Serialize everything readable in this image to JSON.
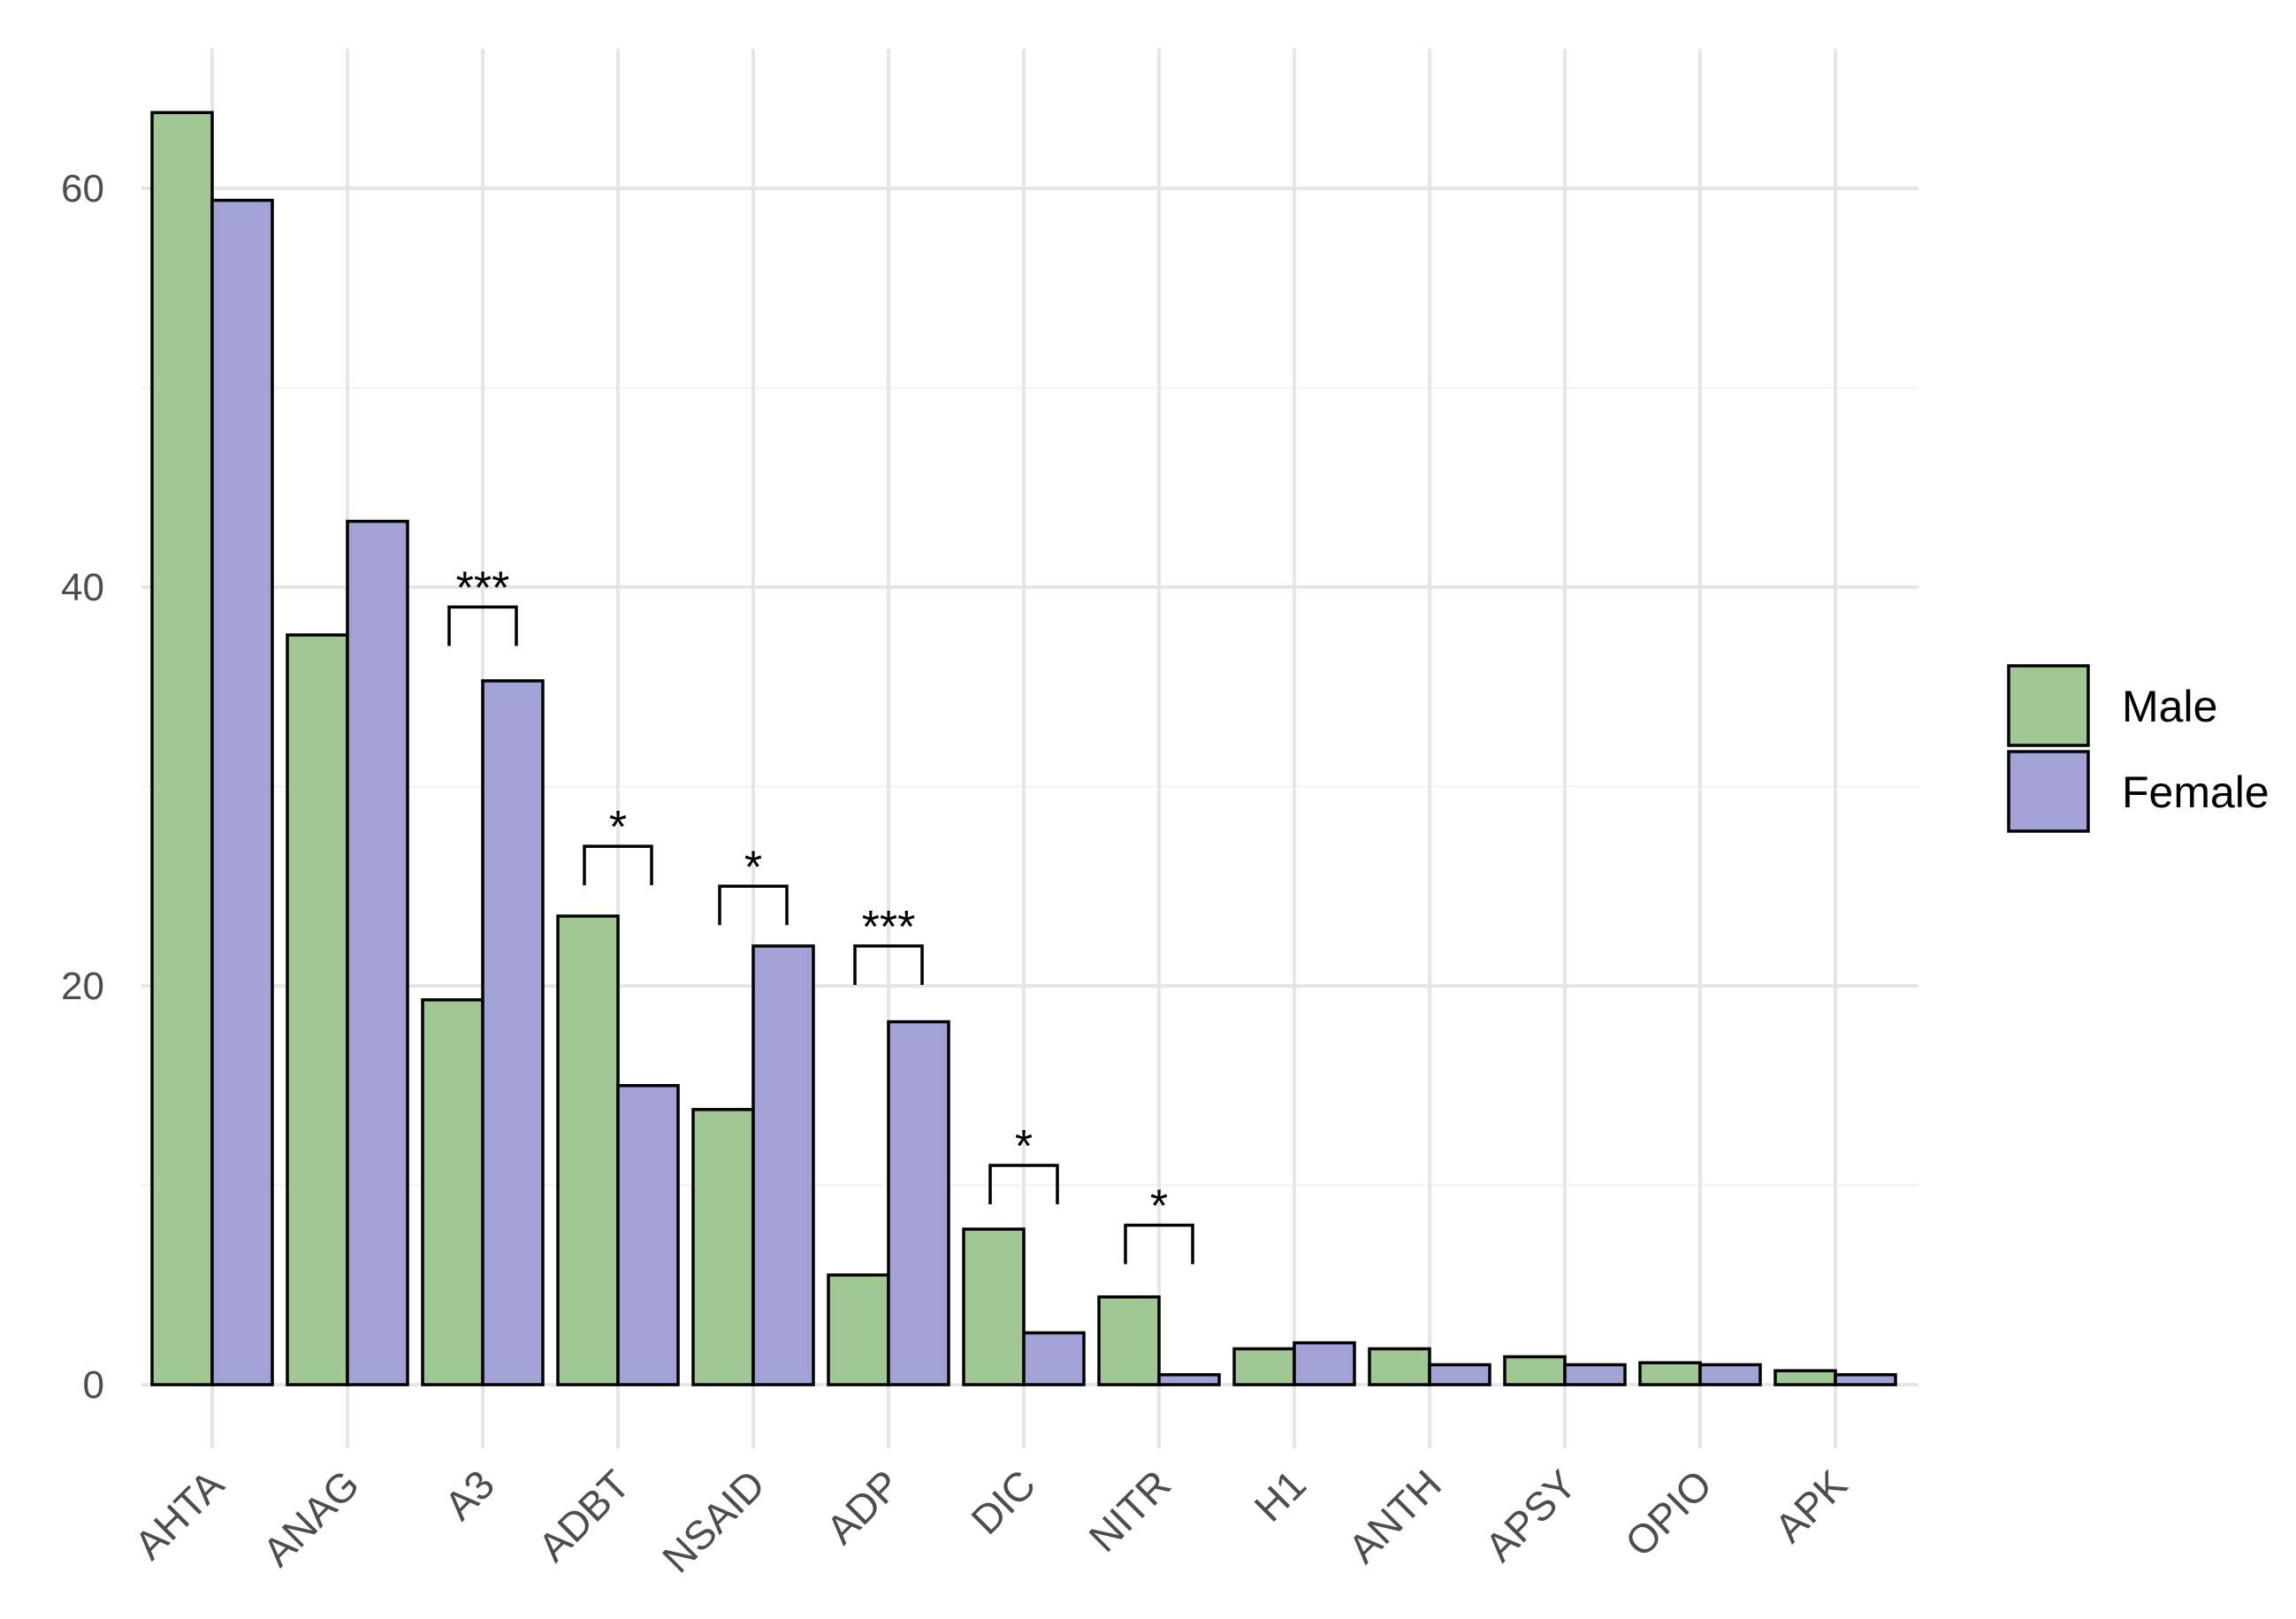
{
  "chart_data": {
    "type": "bar",
    "title": "",
    "xlabel": "",
    "ylabel": "",
    "ylim": [
      0,
      64
    ],
    "yticks": [
      0,
      20,
      40,
      60
    ],
    "grid": true,
    "legend_position": "right",
    "categories": [
      "AHTA",
      "ANAG",
      "A3",
      "ADBT",
      "NSAID",
      "ADP",
      "DIC",
      "NITR",
      "H1",
      "ANTH",
      "APSY",
      "OPIO",
      "APK"
    ],
    "series": [
      {
        "name": "Male",
        "color": "#a1c794",
        "values": [
          63.8,
          37.6,
          19.3,
          23.5,
          13.8,
          5.5,
          7.8,
          4.4,
          1.8,
          1.8,
          1.4,
          1.1,
          0.7
        ]
      },
      {
        "name": "Female",
        "color": "#a2a2d6",
        "values": [
          59.4,
          43.3,
          35.3,
          15.0,
          22.0,
          18.2,
          2.6,
          0.5,
          2.1,
          1.0,
          1.0,
          1.0,
          0.5
        ]
      }
    ],
    "annotations": [
      {
        "category": "A3",
        "label": "***",
        "y": 39
      },
      {
        "category": "ADBT",
        "label": "*",
        "y": 27
      },
      {
        "category": "NSAID",
        "label": "*",
        "y": 25
      },
      {
        "category": "ADP",
        "label": "***",
        "y": 22
      },
      {
        "category": "DIC",
        "label": "*",
        "y": 11
      },
      {
        "category": "NITR",
        "label": "*",
        "y": 8
      }
    ]
  }
}
